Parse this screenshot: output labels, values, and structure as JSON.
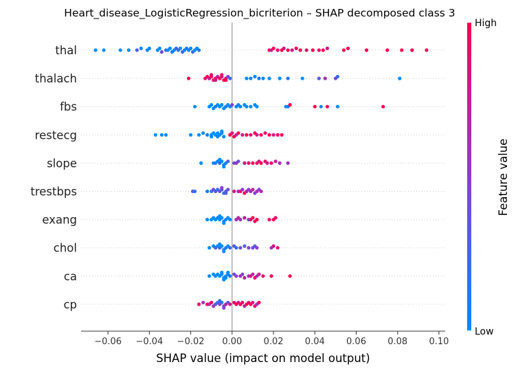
{
  "chart_data": {
    "type": "scatter",
    "subtype": "shap-beeswarm",
    "title": "Heart_disease_LogisticRegression_bicriterion – SHAP decomposed class 3",
    "xlabel": "SHAP value (impact on model output)",
    "xlim": [
      -0.073,
      0.103
    ],
    "x_ticks": [
      -0.06,
      -0.04,
      -0.02,
      0.0,
      0.02,
      0.04,
      0.06,
      0.08,
      0.1
    ],
    "x_tick_labels": [
      "−0.06",
      "−0.04",
      "−0.02",
      "0.00",
      "0.02",
      "0.04",
      "0.06",
      "0.08",
      "0.10"
    ],
    "colorbar": {
      "label": "Feature value",
      "high": "High",
      "low": "Low"
    },
    "colors": {
      "low": "#008bfb",
      "mid": "#8a3fd0",
      "high": "#ff0052",
      "zero_line": "#999999"
    },
    "features": [
      {
        "name": "thal",
        "points": [
          [
            -0.066,
            0
          ],
          [
            -0.062,
            0
          ],
          [
            -0.054,
            0
          ],
          [
            -0.05,
            0
          ],
          [
            -0.046,
            0.3
          ],
          [
            -0.044,
            0
          ],
          [
            -0.041,
            0
          ],
          [
            -0.04,
            0
          ],
          [
            -0.036,
            0
          ],
          [
            -0.035,
            0
          ],
          [
            -0.034,
            0.4
          ],
          [
            -0.032,
            0.2
          ],
          [
            -0.031,
            0
          ],
          [
            -0.03,
            0
          ],
          [
            -0.029,
            0.1
          ],
          [
            -0.028,
            0
          ],
          [
            -0.027,
            0.3
          ],
          [
            -0.026,
            0.1
          ],
          [
            -0.025,
            0
          ],
          [
            -0.024,
            0.2
          ],
          [
            -0.023,
            0
          ],
          [
            -0.022,
            0.1
          ],
          [
            -0.021,
            0
          ],
          [
            -0.02,
            0
          ],
          [
            -0.019,
            0.2
          ],
          [
            -0.018,
            0
          ],
          [
            -0.017,
            0
          ],
          [
            -0.016,
            0.1
          ],
          [
            0.018,
            1
          ],
          [
            0.019,
            0.7
          ],
          [
            0.02,
            1
          ],
          [
            0.022,
            0.9
          ],
          [
            0.024,
            1
          ],
          [
            0.025,
            0.8
          ],
          [
            0.027,
            1
          ],
          [
            0.029,
            0.8
          ],
          [
            0.031,
            1
          ],
          [
            0.033,
            1
          ],
          [
            0.036,
            0.9
          ],
          [
            0.039,
            1
          ],
          [
            0.042,
            0.9
          ],
          [
            0.044,
            1
          ],
          [
            0.046,
            0.8
          ],
          [
            0.054,
            1
          ],
          [
            0.056,
            1
          ],
          [
            0.065,
            1
          ],
          [
            0.075,
            1
          ],
          [
            0.082,
            1
          ],
          [
            0.087,
            1
          ],
          [
            0.094,
            1
          ]
        ]
      },
      {
        "name": "thalach",
        "points": [
          [
            -0.021,
            1
          ],
          [
            -0.013,
            0.9
          ],
          [
            -0.012,
            1
          ],
          [
            -0.011,
            0.8
          ],
          [
            -0.01,
            1
          ],
          [
            -0.009,
            0.9
          ],
          [
            -0.008,
            1
          ],
          [
            -0.007,
            0.7
          ],
          [
            -0.006,
            1
          ],
          [
            -0.005,
            0.8
          ],
          [
            -0.004,
            1
          ],
          [
            -0.003,
            0.9
          ],
          [
            -0.002,
            0.5
          ],
          [
            -0.001,
            0.2
          ],
          [
            -0.01,
            0.9
          ],
          [
            -0.008,
            0.8
          ],
          [
            -0.005,
            0.9
          ],
          [
            -0.003,
            1
          ],
          [
            0.007,
            0
          ],
          [
            0.009,
            0.1
          ],
          [
            0.011,
            0
          ],
          [
            0.013,
            0.1
          ],
          [
            0.015,
            0
          ],
          [
            0.018,
            0
          ],
          [
            0.023,
            0
          ],
          [
            0.027,
            0.1
          ],
          [
            0.034,
            0
          ],
          [
            0.042,
            0.3
          ],
          [
            0.045,
            0.6
          ],
          [
            0.05,
            0.4
          ],
          [
            0.051,
            0.2
          ],
          [
            0.081,
            0
          ]
        ]
      },
      {
        "name": "fbs",
        "points": [
          [
            -0.018,
            0
          ],
          [
            -0.011,
            0
          ],
          [
            -0.01,
            0
          ],
          [
            -0.009,
            0
          ],
          [
            -0.008,
            0.1
          ],
          [
            -0.007,
            0
          ],
          [
            -0.006,
            0
          ],
          [
            -0.005,
            0
          ],
          [
            -0.004,
            0
          ],
          [
            -0.003,
            0.1
          ],
          [
            -0.002,
            0
          ],
          [
            -0.001,
            0
          ],
          [
            0.0,
            0.5
          ],
          [
            0.002,
            0
          ],
          [
            0.003,
            0.1
          ],
          [
            0.004,
            0
          ],
          [
            0.006,
            0
          ],
          [
            0.007,
            0
          ],
          [
            0.009,
            0
          ],
          [
            0.011,
            0
          ],
          [
            0.012,
            0
          ],
          [
            0.026,
            0
          ],
          [
            0.027,
            0.1
          ],
          [
            0.028,
            1
          ],
          [
            0.04,
            1
          ],
          [
            0.043,
            0
          ],
          [
            0.046,
            0.9
          ],
          [
            0.051,
            0
          ],
          [
            0.073,
            1
          ]
        ]
      },
      {
        "name": "restecg",
        "points": [
          [
            -0.037,
            0
          ],
          [
            -0.034,
            0
          ],
          [
            -0.032,
            0
          ],
          [
            -0.02,
            0
          ],
          [
            -0.016,
            0
          ],
          [
            -0.014,
            0
          ],
          [
            -0.012,
            0.1
          ],
          [
            -0.01,
            0
          ],
          [
            -0.009,
            0
          ],
          [
            -0.008,
            0
          ],
          [
            -0.007,
            0
          ],
          [
            -0.006,
            0
          ],
          [
            -0.005,
            0.1
          ],
          [
            -0.004,
            0
          ],
          [
            -0.01,
            0
          ],
          [
            -0.007,
            0
          ],
          [
            -0.005,
            0
          ],
          [
            -0.001,
            1
          ],
          [
            0.0,
            0.9
          ],
          [
            0.001,
            1
          ],
          [
            0.002,
            0.7
          ],
          [
            0.003,
            1
          ],
          [
            0.005,
            0.8
          ],
          [
            0.007,
            1
          ],
          [
            0.009,
            0.9
          ],
          [
            0.011,
            1
          ],
          [
            0.012,
            0.8
          ],
          [
            0.014,
            1
          ],
          [
            0.016,
            0.9
          ],
          [
            0.018,
            1
          ],
          [
            0.02,
            0.8
          ],
          [
            0.022,
            0.9
          ],
          [
            0.024,
            1
          ]
        ]
      },
      {
        "name": "slope",
        "points": [
          [
            -0.015,
            0
          ],
          [
            -0.009,
            0
          ],
          [
            -0.008,
            0.1
          ],
          [
            -0.007,
            0
          ],
          [
            -0.006,
            0.2
          ],
          [
            -0.005,
            0
          ],
          [
            -0.004,
            0.1
          ],
          [
            -0.003,
            0
          ],
          [
            -0.002,
            0.3
          ],
          [
            -0.006,
            0
          ],
          [
            -0.004,
            0
          ],
          [
            0.001,
            0.4
          ],
          [
            0.002,
            0.6
          ],
          [
            0.003,
            0.4
          ],
          [
            0.006,
            0.8
          ],
          [
            0.008,
            0.9
          ],
          [
            0.01,
            1
          ],
          [
            0.012,
            0.9
          ],
          [
            0.013,
            0.8
          ],
          [
            0.014,
            1
          ],
          [
            0.016,
            0.9
          ],
          [
            0.017,
            0.8
          ],
          [
            0.019,
            0.9
          ],
          [
            0.021,
            0.7
          ],
          [
            0.023,
            0.6
          ],
          [
            0.027,
            0.6
          ]
        ]
      },
      {
        "name": "trestbps",
        "points": [
          [
            -0.019,
            0.3
          ],
          [
            -0.018,
            0.2
          ],
          [
            -0.012,
            0.1
          ],
          [
            -0.01,
            0.2
          ],
          [
            -0.009,
            0.4
          ],
          [
            -0.008,
            0.3
          ],
          [
            -0.007,
            0.2
          ],
          [
            -0.006,
            0.4
          ],
          [
            -0.005,
            0.3
          ],
          [
            -0.004,
            0.1
          ],
          [
            -0.003,
            0.3
          ],
          [
            -0.002,
            0.4
          ],
          [
            -0.005,
            0.5
          ],
          [
            -0.003,
            0.3
          ],
          [
            0.001,
            0.8
          ],
          [
            0.003,
            0.6
          ],
          [
            0.004,
            0.9
          ],
          [
            0.005,
            0.5
          ],
          [
            0.006,
            1
          ],
          [
            0.007,
            0.7
          ],
          [
            0.008,
            0.5
          ],
          [
            0.009,
            0.6
          ],
          [
            0.01,
            0.7
          ],
          [
            0.011,
            0.5
          ],
          [
            0.012,
            0.6
          ],
          [
            0.013,
            0.5
          ],
          [
            0.014,
            0.7
          ]
        ]
      },
      {
        "name": "exang",
        "points": [
          [
            -0.012,
            0
          ],
          [
            -0.01,
            0
          ],
          [
            -0.009,
            0
          ],
          [
            -0.008,
            0
          ],
          [
            -0.007,
            0.1
          ],
          [
            -0.006,
            0
          ],
          [
            -0.005,
            0
          ],
          [
            -0.004,
            0
          ],
          [
            -0.003,
            0
          ],
          [
            -0.002,
            0
          ],
          [
            -0.001,
            0
          ],
          [
            -0.006,
            0
          ],
          [
            -0.004,
            0
          ],
          [
            0.002,
            0.6
          ],
          [
            0.003,
            0.7
          ],
          [
            0.004,
            0.6
          ],
          [
            0.006,
            0.8
          ],
          [
            0.008,
            0.5
          ],
          [
            0.009,
            0.9
          ],
          [
            0.01,
            1
          ],
          [
            0.011,
            0.9
          ],
          [
            0.012,
            1
          ],
          [
            0.018,
            0.9
          ],
          [
            0.02,
            1
          ],
          [
            0.021,
            0.9
          ]
        ]
      },
      {
        "name": "chol",
        "points": [
          [
            -0.011,
            0
          ],
          [
            -0.009,
            0
          ],
          [
            -0.008,
            0.3
          ],
          [
            -0.007,
            0
          ],
          [
            -0.006,
            0.2
          ],
          [
            -0.005,
            0
          ],
          [
            -0.004,
            0
          ],
          [
            -0.003,
            0.1
          ],
          [
            -0.002,
            0
          ],
          [
            -0.001,
            0.2
          ],
          [
            -0.006,
            0
          ],
          [
            -0.004,
            0
          ],
          [
            0.001,
            0.3
          ],
          [
            0.002,
            0.2
          ],
          [
            0.004,
            0.4
          ],
          [
            0.006,
            0.3
          ],
          [
            0.008,
            0.5
          ],
          [
            0.01,
            0.4
          ],
          [
            0.011,
            0.3
          ],
          [
            0.012,
            0.5
          ],
          [
            0.019,
            0.6
          ],
          [
            0.02,
            0.8
          ],
          [
            0.022,
            0.9
          ]
        ]
      },
      {
        "name": "ca",
        "points": [
          [
            -0.011,
            0
          ],
          [
            -0.009,
            0
          ],
          [
            -0.008,
            0
          ],
          [
            -0.007,
            0
          ],
          [
            -0.006,
            0
          ],
          [
            -0.005,
            0
          ],
          [
            -0.004,
            0
          ],
          [
            -0.003,
            0
          ],
          [
            -0.002,
            0
          ],
          [
            -0.001,
            0.1
          ],
          [
            -0.005,
            0
          ],
          [
            -0.003,
            0
          ],
          [
            -0.004,
            0
          ],
          [
            -0.002,
            0
          ],
          [
            0.001,
            0.4
          ],
          [
            0.002,
            0.5
          ],
          [
            0.004,
            0.6
          ],
          [
            0.005,
            0.5
          ],
          [
            0.006,
            0.7
          ],
          [
            0.008,
            0.6
          ],
          [
            0.009,
            0.8
          ],
          [
            0.01,
            0.7
          ],
          [
            0.011,
            0.9
          ],
          [
            0.012,
            0.6
          ],
          [
            0.013,
            0.8
          ],
          [
            0.015,
            0.9
          ],
          [
            0.019,
            1
          ],
          [
            0.028,
            1
          ]
        ]
      },
      {
        "name": "cp",
        "points": [
          [
            -0.016,
            0.9
          ],
          [
            -0.014,
            0.6
          ],
          [
            -0.012,
            1
          ],
          [
            -0.011,
            0.7
          ],
          [
            -0.01,
            0.9
          ],
          [
            -0.009,
            0.6
          ],
          [
            -0.008,
            0.3
          ],
          [
            -0.007,
            0.2
          ],
          [
            -0.006,
            0.5
          ],
          [
            -0.005,
            0.1
          ],
          [
            -0.004,
            0.4
          ],
          [
            -0.003,
            0.7
          ],
          [
            -0.002,
            0.3
          ],
          [
            -0.001,
            0.8
          ],
          [
            -0.006,
            0.2
          ],
          [
            -0.004,
            0.5
          ],
          [
            0.001,
            0.9
          ],
          [
            0.002,
            1
          ],
          [
            0.003,
            0.8
          ],
          [
            0.004,
            1
          ],
          [
            0.005,
            0.9
          ],
          [
            0.006,
            0.7
          ],
          [
            0.007,
            1
          ],
          [
            0.008,
            0.9
          ],
          [
            0.009,
            1
          ],
          [
            0.01,
            0.8
          ],
          [
            0.011,
            0.9
          ],
          [
            0.012,
            0.6
          ],
          [
            0.013,
            1
          ]
        ]
      }
    ]
  }
}
